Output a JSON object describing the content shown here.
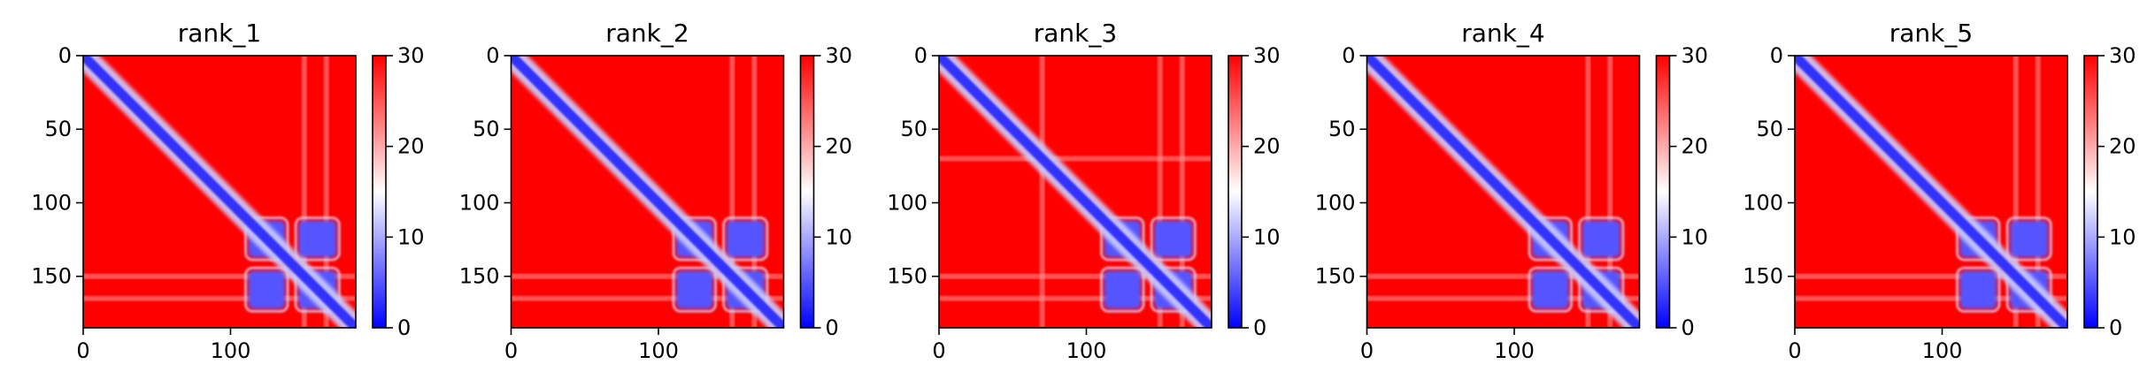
{
  "colors": {
    "low": "#0000ff",
    "mid": "#ffffff",
    "high": "#ff0000",
    "axis": "#000000"
  },
  "colormap": "bwr",
  "chart_data": [
    {
      "type": "heatmap",
      "title": "rank_1",
      "data_extent": [
        0,
        185
      ],
      "xticks": [
        {
          "value": 0,
          "label": "0"
        },
        {
          "value": 100,
          "label": "100"
        }
      ],
      "yticks": [
        {
          "value": 0,
          "label": "0"
        },
        {
          "value": 50,
          "label": "50"
        },
        {
          "value": 100,
          "label": "100"
        },
        {
          "value": 150,
          "label": "150"
        }
      ],
      "colorbar": {
        "range": [
          0,
          30
        ],
        "ticks": [
          {
            "value": 0,
            "label": "0"
          },
          {
            "value": 10,
            "label": "10"
          },
          {
            "value": 20,
            "label": "20"
          },
          {
            "value": 30,
            "label": "30"
          }
        ]
      },
      "grid": false,
      "blocks": [
        {
          "start": 112,
          "end": 137
        },
        {
          "start": 146,
          "end": 172
        }
      ],
      "streaks": [
        150,
        165
      ]
    },
    {
      "type": "heatmap",
      "title": "rank_2",
      "data_extent": [
        0,
        185
      ],
      "xticks": [
        {
          "value": 0,
          "label": "0"
        },
        {
          "value": 100,
          "label": "100"
        }
      ],
      "yticks": [
        {
          "value": 0,
          "label": "0"
        },
        {
          "value": 50,
          "label": "50"
        },
        {
          "value": 100,
          "label": "100"
        },
        {
          "value": 150,
          "label": "150"
        }
      ],
      "colorbar": {
        "range": [
          0,
          30
        ],
        "ticks": [
          {
            "value": 0,
            "label": "0"
          },
          {
            "value": 10,
            "label": "10"
          },
          {
            "value": 20,
            "label": "20"
          },
          {
            "value": 30,
            "label": "30"
          }
        ]
      },
      "grid": false,
      "blocks": [
        {
          "start": 112,
          "end": 137
        },
        {
          "start": 146,
          "end": 172
        }
      ],
      "streaks": [
        150,
        165
      ]
    },
    {
      "type": "heatmap",
      "title": "rank_3",
      "data_extent": [
        0,
        185
      ],
      "xticks": [
        {
          "value": 0,
          "label": "0"
        },
        {
          "value": 100,
          "label": "100"
        }
      ],
      "yticks": [
        {
          "value": 0,
          "label": "0"
        },
        {
          "value": 50,
          "label": "50"
        },
        {
          "value": 100,
          "label": "100"
        },
        {
          "value": 150,
          "label": "150"
        }
      ],
      "colorbar": {
        "range": [
          0,
          30
        ],
        "ticks": [
          {
            "value": 0,
            "label": "0"
          },
          {
            "value": 10,
            "label": "10"
          },
          {
            "value": 20,
            "label": "20"
          },
          {
            "value": 30,
            "label": "30"
          }
        ]
      },
      "grid": false,
      "blocks": [
        {
          "start": 112,
          "end": 137
        },
        {
          "start": 146,
          "end": 172
        }
      ],
      "streaks": [
        70,
        150,
        165
      ]
    },
    {
      "type": "heatmap",
      "title": "rank_4",
      "data_extent": [
        0,
        185
      ],
      "xticks": [
        {
          "value": 0,
          "label": "0"
        },
        {
          "value": 100,
          "label": "100"
        }
      ],
      "yticks": [
        {
          "value": 0,
          "label": "0"
        },
        {
          "value": 50,
          "label": "50"
        },
        {
          "value": 100,
          "label": "100"
        },
        {
          "value": 150,
          "label": "150"
        }
      ],
      "colorbar": {
        "range": [
          0,
          30
        ],
        "ticks": [
          {
            "value": 0,
            "label": "0"
          },
          {
            "value": 10,
            "label": "10"
          },
          {
            "value": 20,
            "label": "20"
          },
          {
            "value": 30,
            "label": "30"
          }
        ]
      },
      "grid": false,
      "blocks": [
        {
          "start": 112,
          "end": 137
        },
        {
          "start": 146,
          "end": 172
        }
      ],
      "streaks": [
        150,
        165
      ]
    },
    {
      "type": "heatmap",
      "title": "rank_5",
      "data_extent": [
        0,
        185
      ],
      "xticks": [
        {
          "value": 0,
          "label": "0"
        },
        {
          "value": 100,
          "label": "100"
        }
      ],
      "yticks": [
        {
          "value": 0,
          "label": "0"
        },
        {
          "value": 50,
          "label": "50"
        },
        {
          "value": 100,
          "label": "100"
        },
        {
          "value": 150,
          "label": "150"
        }
      ],
      "colorbar": {
        "range": [
          0,
          30
        ],
        "ticks": [
          {
            "value": 0,
            "label": "0"
          },
          {
            "value": 10,
            "label": "10"
          },
          {
            "value": 20,
            "label": "20"
          },
          {
            "value": 30,
            "label": "30"
          }
        ]
      },
      "grid": false,
      "blocks": [
        {
          "start": 112,
          "end": 137
        },
        {
          "start": 146,
          "end": 172
        }
      ],
      "streaks": [
        150,
        165
      ]
    }
  ]
}
